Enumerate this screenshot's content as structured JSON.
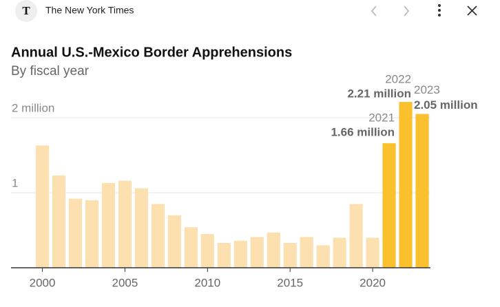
{
  "header": {
    "site": "The New York Times"
  },
  "chart_data": {
    "type": "bar",
    "title": "Annual U.S.-Mexico Border Apprehensions",
    "subtitle": "By fiscal year",
    "x": [
      2000,
      2001,
      2002,
      2003,
      2004,
      2005,
      2006,
      2007,
      2008,
      2009,
      2010,
      2011,
      2012,
      2013,
      2014,
      2015,
      2016,
      2017,
      2018,
      2019,
      2020,
      2021,
      2022,
      2023
    ],
    "values": [
      1.63,
      1.23,
      0.92,
      0.9,
      1.13,
      1.16,
      1.06,
      0.85,
      0.7,
      0.54,
      0.45,
      0.33,
      0.36,
      0.41,
      0.47,
      0.33,
      0.41,
      0.3,
      0.4,
      0.85,
      0.4,
      1.66,
      2.21,
      2.05
    ],
    "value_labels": [
      null,
      null,
      null,
      null,
      null,
      null,
      null,
      null,
      null,
      null,
      null,
      null,
      null,
      null,
      null,
      null,
      null,
      null,
      null,
      null,
      null,
      "1.66 million",
      "2.21 million",
      "2.05 million"
    ],
    "colors": [
      "#fde0b0",
      "#fde0b0",
      "#fde0b0",
      "#fde0b0",
      "#fde0b0",
      "#fde0b0",
      "#fde0b0",
      "#fde0b0",
      "#fde0b0",
      "#fde0b0",
      "#fde0b0",
      "#fde0b0",
      "#fde0b0",
      "#fde0b0",
      "#fde0b0",
      "#fde0b0",
      "#fde0b0",
      "#fde0b0",
      "#fde0b0",
      "#fde0b0",
      "#fde0b0",
      "#fbc02d",
      "#fbc02d",
      "#fbc02d"
    ],
    "xlim": [
      1998.1,
      2023.5
    ],
    "xticks": [
      2000,
      2005,
      2010,
      2015,
      2020
    ],
    "ylim": [
      0,
      2.5
    ],
    "yticks": [
      {
        "value": 1,
        "label": "1"
      },
      {
        "value": 2,
        "label": "2 million"
      }
    ],
    "grid": true
  }
}
